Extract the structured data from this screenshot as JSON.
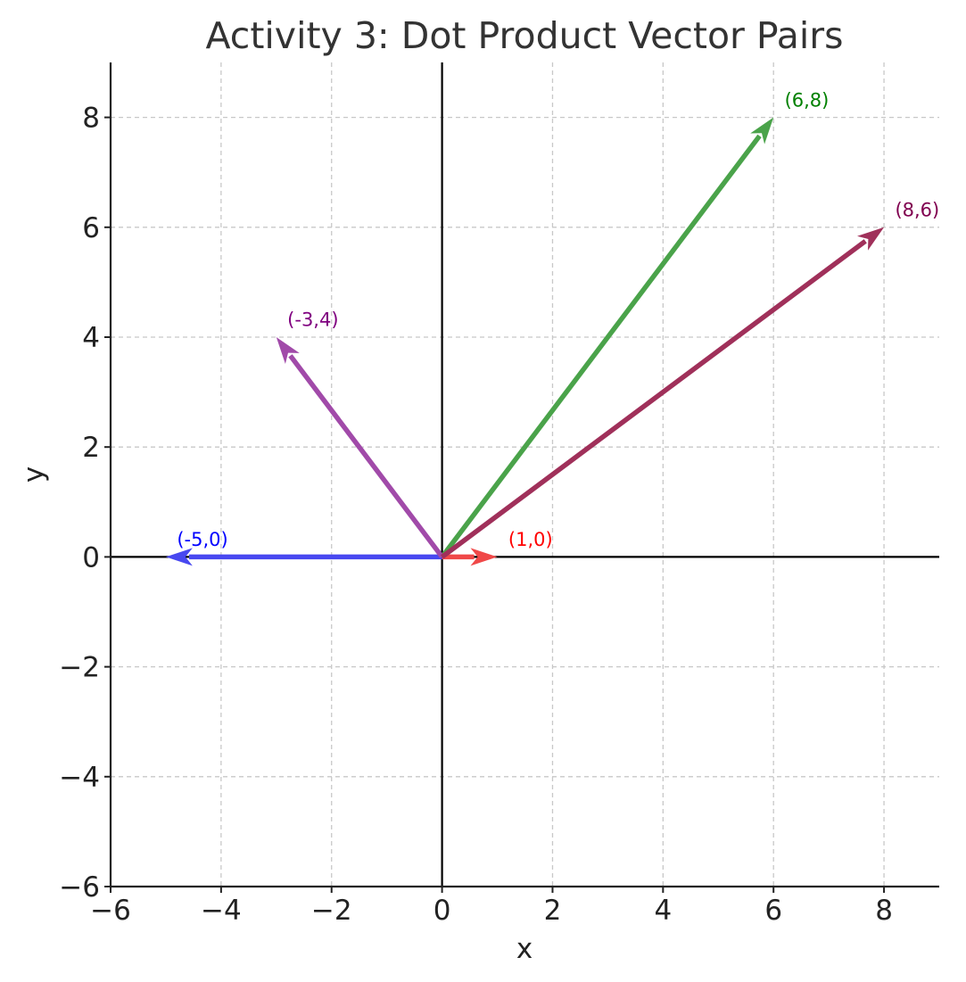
{
  "chart_data": {
    "type": "vector",
    "title": "Activity 3: Dot Product Vector Pairs",
    "xlabel": "x",
    "ylabel": "y",
    "xlim": [
      -6,
      9
    ],
    "ylim": [
      -6,
      9
    ],
    "xticks": [
      -6,
      -4,
      -2,
      0,
      2,
      4,
      6,
      8
    ],
    "yticks": [
      -6,
      -4,
      -2,
      0,
      2,
      4,
      6,
      8
    ],
    "xtick_labels": [
      "−6",
      "−4",
      "−2",
      "0",
      "2",
      "4",
      "6",
      "8"
    ],
    "ytick_labels": [
      "−6",
      "−4",
      "−2",
      "0",
      "2",
      "4",
      "6",
      "8"
    ],
    "grid": true,
    "vectors": [
      {
        "x": 1,
        "y": 0,
        "label": "(1,0)",
        "color": "#f04848",
        "label_color": "#ff0000"
      },
      {
        "x": -5,
        "y": 0,
        "label": "(-5,0)",
        "color": "#4848f0",
        "label_color": "#0000ff"
      },
      {
        "x": 6,
        "y": 8,
        "label": "(6,8)",
        "color": "#4aa34a",
        "label_color": "#008000"
      },
      {
        "x": -3,
        "y": 4,
        "label": "(-3,4)",
        "color": "#a14aa9",
        "label_color": "#800080"
      },
      {
        "x": 8,
        "y": 6,
        "label": "(8,6)",
        "color": "#a0305a",
        "label_color": "#800050"
      }
    ]
  }
}
